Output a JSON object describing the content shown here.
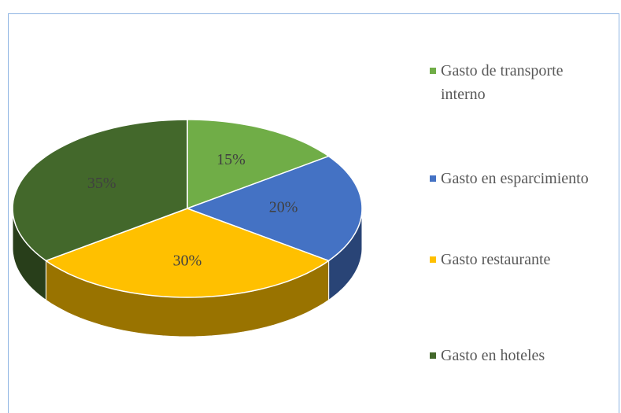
{
  "chart_data": {
    "type": "pie",
    "series": [
      {
        "name": "Gasto de transporte interno",
        "color": "#70ad47",
        "values": [
          15
        ],
        "value_labels": [
          "15%"
        ]
      },
      {
        "name": "Gasto en esparcimiento",
        "color": "#4472c4",
        "values": [
          20
        ],
        "value_labels": [
          "20%"
        ]
      },
      {
        "name": "Gasto restaurante",
        "color": "#ffc000",
        "values": [
          30
        ],
        "value_labels": [
          "30%"
        ]
      },
      {
        "name": "Gasto en hoteles",
        "color": "#43682b",
        "values": [
          35
        ],
        "value_labels": [
          "35%"
        ]
      }
    ],
    "legend": "right"
  }
}
